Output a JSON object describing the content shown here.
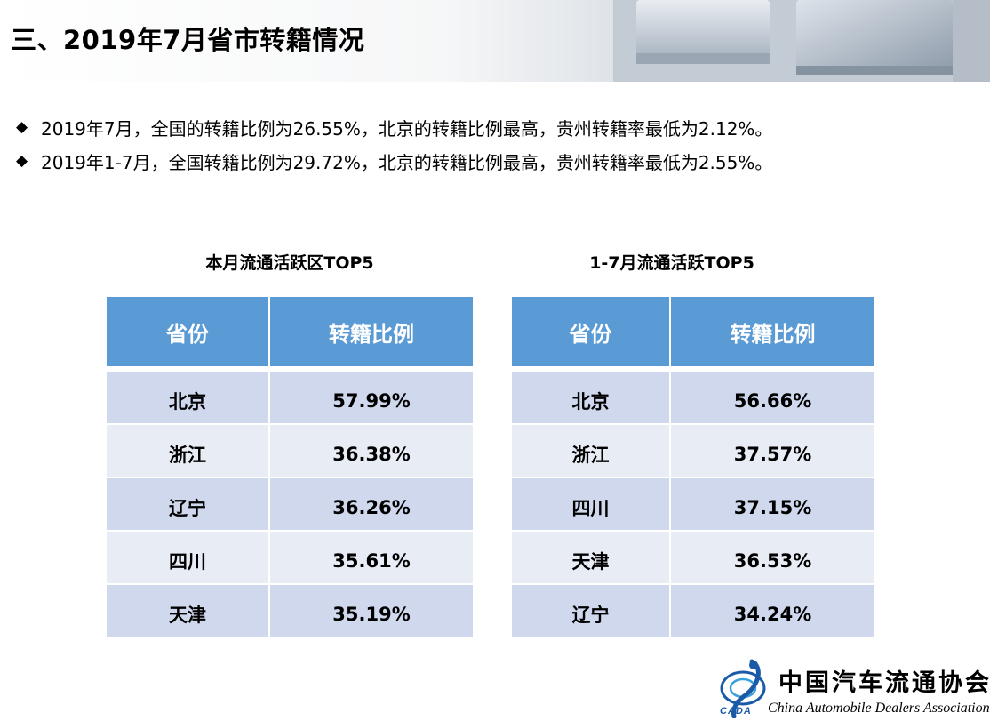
{
  "header": {
    "title": "三、2019年7月省市转籍情况"
  },
  "bullets": [
    "2019年7月，全国的转籍比例为26.55%，北京的转籍比例最高，贵州转籍率最低为2.12%。",
    "2019年1-7月，全国转籍比例为29.72%，北京的转籍比例最高，贵州转籍率最低为2.55%。"
  ],
  "bullet_glyph": "◆",
  "tables": [
    {
      "title": "本月流通活跃区TOP5",
      "headers": [
        "省份",
        "转籍比例"
      ],
      "rows": [
        [
          "北京",
          "57.99%"
        ],
        [
          "浙江",
          "36.38%"
        ],
        [
          "辽宁",
          "36.26%"
        ],
        [
          "四川",
          "35.61%"
        ],
        [
          "天津",
          "35.19%"
        ]
      ]
    },
    {
      "title": "1-7月流通活跃TOP5",
      "headers": [
        "省份",
        "转籍比例"
      ],
      "rows": [
        [
          "北京",
          "56.66%"
        ],
        [
          "浙江",
          "37.57%"
        ],
        [
          "四川",
          "37.15%"
        ],
        [
          "天津",
          "36.53%"
        ],
        [
          "辽宁",
          "34.24%"
        ]
      ]
    }
  ],
  "logo": {
    "name_cn": "中国汽车流通协会",
    "name_en": "China Automobile Dealers Association",
    "abbr": "CADA"
  },
  "colors": {
    "header_fill": "#5b9bd5",
    "row_dark": "#cfd8ec",
    "row_light": "#e8ecf5"
  }
}
